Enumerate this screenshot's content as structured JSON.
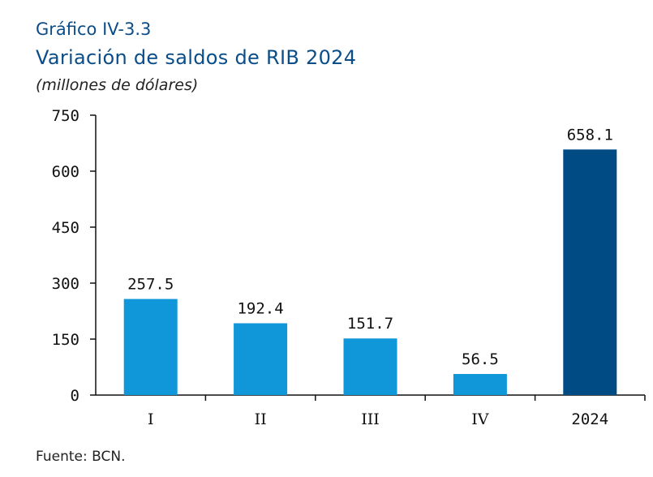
{
  "header": {
    "label": "Gráfico IV-3.3",
    "title": "Variación de saldos de RIB 2024",
    "subtitle": "(millones de dólares)"
  },
  "footer": {
    "source": "Fuente: BCN."
  },
  "colors": {
    "quarter": "#0f97d9",
    "annual": "#004b84",
    "title": "#0b4d88"
  },
  "chart_data": {
    "type": "bar",
    "title": "Variación de saldos de RIB 2024",
    "subtitle": "(millones de dólares)",
    "categories": [
      "I",
      "II",
      "III",
      "IV",
      "2024"
    ],
    "values": [
      257.5,
      192.4,
      151.7,
      56.5,
      658.1
    ],
    "value_labels": [
      "257.5",
      "192.4",
      "151.7",
      "56.5",
      "658.1"
    ],
    "yticks": [
      "0",
      "150",
      "300",
      "450",
      "600",
      "750"
    ],
    "ylim": [
      0,
      750
    ],
    "grid": false,
    "legend": "none",
    "xlabel": "",
    "ylabel": ""
  }
}
